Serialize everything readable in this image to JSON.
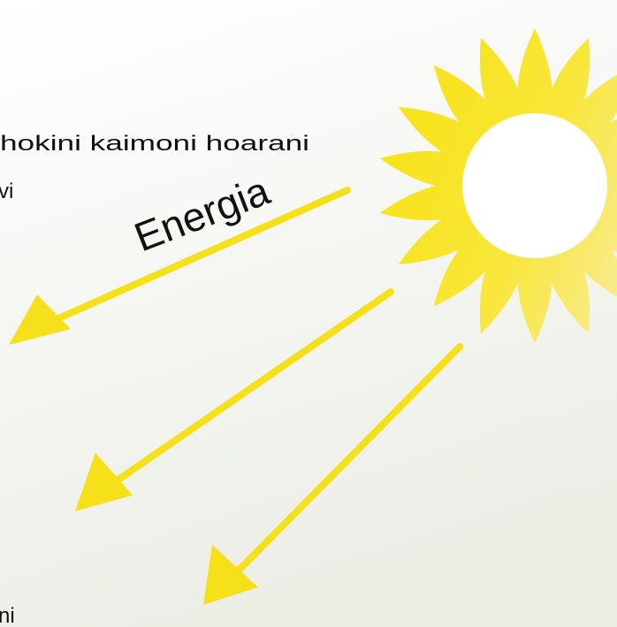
{
  "texts": {
    "line1": "hokini kaimoni hoarani",
    "line2": "vi",
    "energy": "Energia",
    "bottom": "ni"
  }
}
